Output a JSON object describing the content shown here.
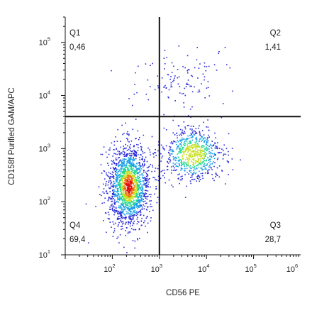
{
  "chart_data": {
    "type": "scatter",
    "subtype": "flow-cytometry-density-dot-plot",
    "xlabel": "CD56 PE",
    "ylabel": "CD158f Purified GAM/APC",
    "x_scale": "log",
    "y_scale": "log",
    "xlim": [
      10,
      1000000
    ],
    "ylim": [
      10,
      300000
    ],
    "x_ticks": [
      {
        "value": 100,
        "base": "10",
        "exp": "2"
      },
      {
        "value": 1000,
        "base": "10",
        "exp": "3"
      },
      {
        "value": 10000,
        "base": "10",
        "exp": "4"
      },
      {
        "value": 100000,
        "base": "10",
        "exp": "5"
      },
      {
        "value": 1000000,
        "base": "10",
        "exp": "6"
      }
    ],
    "y_ticks": [
      {
        "value": 10,
        "base": "10",
        "exp": "1"
      },
      {
        "value": 100,
        "base": "10",
        "exp": "2"
      },
      {
        "value": 1000,
        "base": "10",
        "exp": "3"
      },
      {
        "value": 10000,
        "base": "10",
        "exp": "4"
      },
      {
        "value": 100000,
        "base": "10",
        "exp": "5"
      }
    ],
    "quadrant_gates": {
      "x": 1000,
      "y": 4000
    },
    "quadrants": [
      {
        "name": "Q1",
        "percent": "0,46",
        "position": "top-left"
      },
      {
        "name": "Q2",
        "percent": "1,41",
        "position": "top-right"
      },
      {
        "name": "Q3",
        "percent": "28,7",
        "position": "bottom-right"
      },
      {
        "name": "Q4",
        "percent": "69,4",
        "position": "bottom-left"
      }
    ],
    "populations": [
      {
        "center_x": 220,
        "center_y": 200,
        "spread_log_x": 0.22,
        "spread_log_y": 0.38,
        "weight": 0.69
      },
      {
        "center_x": 5000,
        "center_y": 800,
        "spread_log_x": 0.32,
        "spread_log_y": 0.25,
        "weight": 0.29
      },
      {
        "center_x": 2500,
        "center_y": 20000,
        "spread_log_x": 0.45,
        "spread_log_y": 0.3,
        "weight": 0.02
      }
    ],
    "density_colors": [
      "#2a2ad8",
      "#1aa0e8",
      "#20d890",
      "#c8e020",
      "#f07010",
      "#e01010"
    ],
    "grid": false,
    "legend": "none"
  }
}
